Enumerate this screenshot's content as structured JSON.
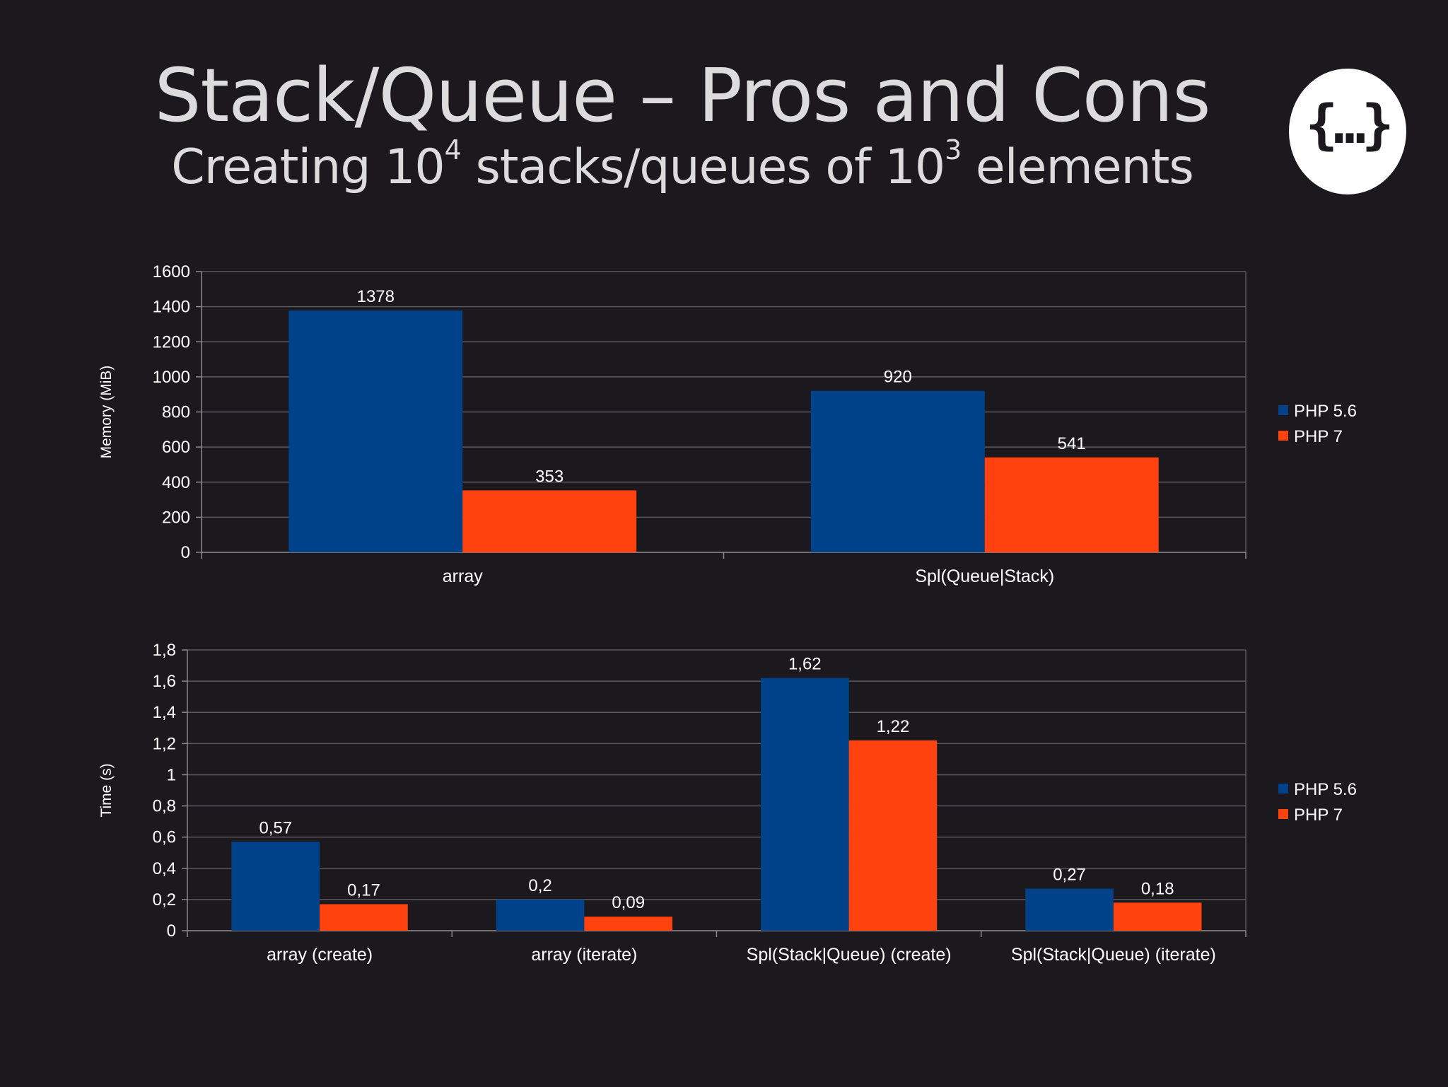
{
  "slide": {
    "title": "Stack/Queue – Pros and Cons",
    "subtitle": {
      "prefix": "Creating 10",
      "sup1": "4",
      "middle": " stacks/queues of 10",
      "sup2": "3",
      "suffix": " elements"
    },
    "logo_text": "{…}",
    "logo_icon": "curly-braces-ellipsis-icon"
  },
  "colors": {
    "background": "#1b191e",
    "php56": "#00428a",
    "php7": "#ff420e",
    "grid": "#5a585c",
    "axis": "#8a888c",
    "text": "#ffffff",
    "title": "#dcdcdc"
  },
  "chart_data": [
    {
      "type": "bar",
      "title": "",
      "xlabel": "",
      "ylabel": "Memory (MiB)",
      "ylim": [
        0,
        1600
      ],
      "yticks": [
        "0",
        "200",
        "400",
        "600",
        "800",
        "1000",
        "1200",
        "1400",
        "1600"
      ],
      "grid": true,
      "legend_placement": "right",
      "categories": [
        "array",
        "Spl(Queue|Stack)"
      ],
      "series": [
        {
          "name": "PHP 5.6",
          "values": [
            1378,
            920
          ],
          "labels": [
            "1378",
            "920"
          ]
        },
        {
          "name": "PHP 7",
          "values": [
            353,
            541
          ],
          "labels": [
            "353",
            "541"
          ]
        }
      ]
    },
    {
      "type": "bar",
      "title": "",
      "xlabel": "",
      "ylabel": "Time (s)",
      "ylim": [
        0,
        1.8
      ],
      "yticks": [
        "0",
        "0,2",
        "0,4",
        "0,6",
        "0,8",
        "1",
        "1,2",
        "1,4",
        "1,6",
        "1,8"
      ],
      "grid": true,
      "legend_placement": "right",
      "categories": [
        "array (create)",
        "array (iterate)",
        "Spl(Stack|Queue) (create)",
        "Spl(Stack|Queue) (iterate)"
      ],
      "series": [
        {
          "name": "PHP 5.6",
          "values": [
            0.57,
            0.2,
            1.62,
            0.27
          ],
          "labels": [
            "0,57",
            "0,2",
            "1,62",
            "0,27"
          ]
        },
        {
          "name": "PHP 7",
          "values": [
            0.17,
            0.09,
            1.22,
            0.18
          ],
          "labels": [
            "0,17",
            "0,09",
            "1,22",
            "0,18"
          ]
        }
      ]
    }
  ]
}
